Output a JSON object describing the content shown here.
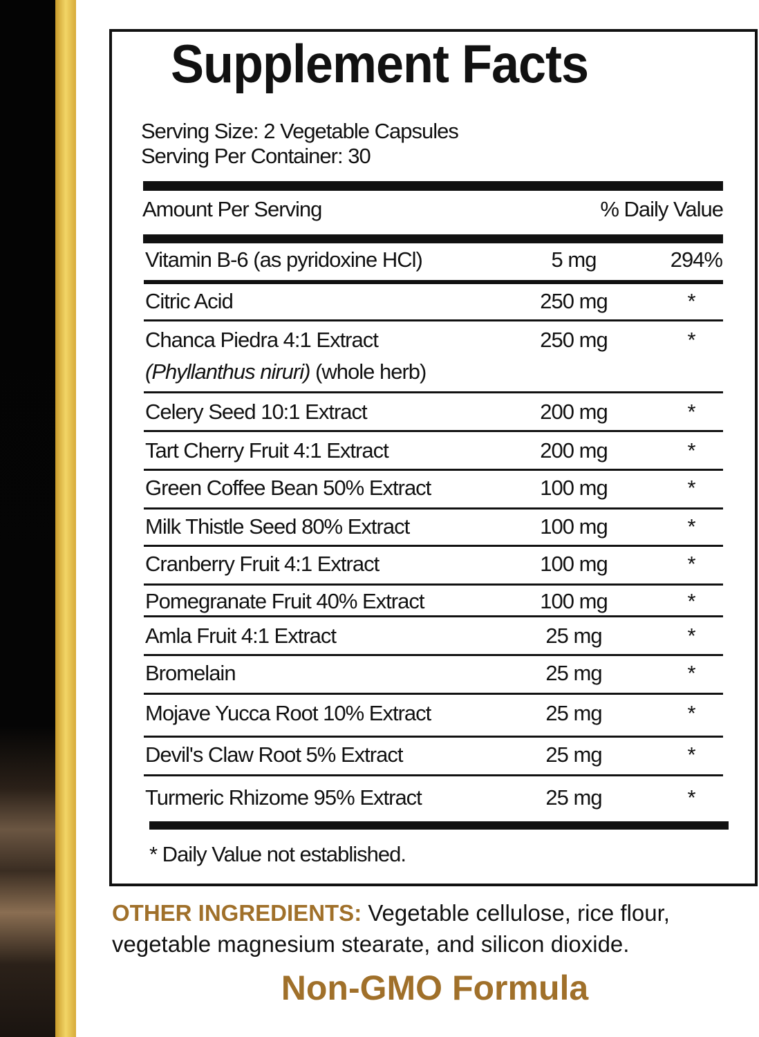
{
  "title": "Supplement Facts",
  "serving_size": "Serving Size: 2 Vegetable Capsules",
  "servings_per_container": "Serving Per Container: 30",
  "header": {
    "amount": "Amount Per Serving",
    "dv": "% Daily Value"
  },
  "rows": [
    {
      "name": "Vitamin B-6 (as pyridoxine HCl)",
      "amount": "5 mg",
      "dv": "294%"
    },
    {
      "name": "Citric Acid",
      "amount": "250 mg",
      "dv": "*"
    },
    {
      "name": "Chanca Piedra 4:1 Extract",
      "latin": "(Phyllanthus niruri)",
      "extra": " (whole herb)",
      "amount": "250 mg",
      "dv": "*"
    },
    {
      "name": "Celery Seed 10:1 Extract",
      "amount": "200 mg",
      "dv": "*"
    },
    {
      "name": "Tart Cherry Fruit 4:1 Extract",
      "amount": "200 mg",
      "dv": "*"
    },
    {
      "name": "Green Coffee Bean 50% Extract",
      "amount": "100 mg",
      "dv": "*"
    },
    {
      "name": "Milk Thistle Seed 80% Extract",
      "amount": "100 mg",
      "dv": "*"
    },
    {
      "name": "Cranberry Fruit 4:1 Extract",
      "amount": "100 mg",
      "dv": "*"
    },
    {
      "name": "Pomegranate Fruit 40% Extract",
      "amount": "100 mg",
      "dv": "*"
    },
    {
      "name": "Amla Fruit 4:1 Extract",
      "amount": "25 mg",
      "dv": "*"
    },
    {
      "name": "Bromelain",
      "amount": "25 mg",
      "dv": "*"
    },
    {
      "name": "Mojave Yucca Root 10% Extract",
      "amount": "25 mg",
      "dv": "*"
    },
    {
      "name": "Devil's Claw Root 5% Extract",
      "amount": "25 mg",
      "dv": "*"
    },
    {
      "name": "Turmeric Rhizome 95% Extract",
      "amount": "25 mg",
      "dv": "*"
    }
  ],
  "footnote": "* Daily Value not established.",
  "other_ingredients": {
    "label": "OTHER INGREDIENTS:",
    "text": " Vegetable cellulose, rice flour, vegetable magnesium stearate, and silicon dioxide."
  },
  "badge": "Non-GMO Formula",
  "colors": {
    "accent": "#a0702a",
    "gold_stripe": "#f2d566"
  }
}
